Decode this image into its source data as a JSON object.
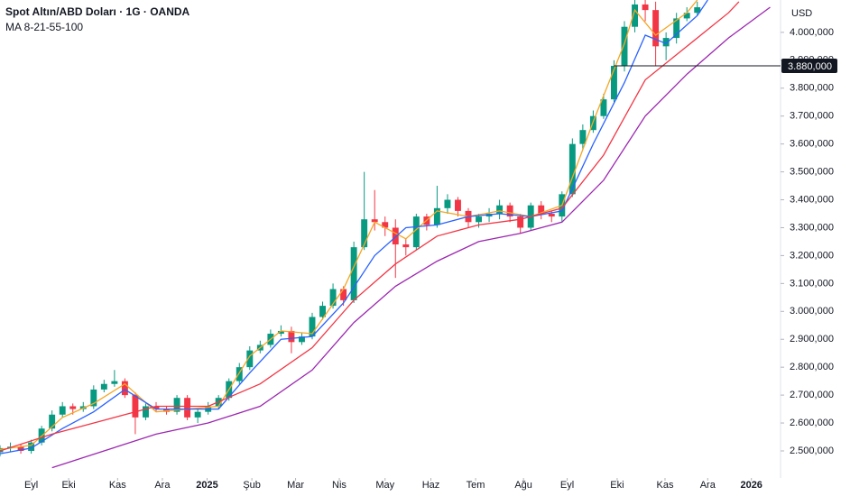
{
  "chart_data": {
    "type": "candlestick",
    "title": "Spot Altın/ABD Doları · 1G · OANDA",
    "indicator_label": "MA 8-21-55-100",
    "currency": "USD",
    "up_color": "#089981",
    "down_color": "#f23645",
    "x": [
      0,
      1,
      2,
      3,
      4,
      5,
      6,
      7,
      8,
      9,
      10,
      11,
      12,
      13,
      14,
      15,
      16,
      17,
      18,
      19,
      20,
      21,
      22,
      23,
      24,
      25,
      26,
      27,
      28,
      29,
      30,
      31,
      32,
      33,
      34,
      35,
      36,
      37,
      38,
      39,
      40,
      41,
      42,
      43,
      44,
      45,
      46,
      47,
      48,
      49,
      50,
      51,
      52,
      53,
      54,
      55,
      56,
      57,
      58,
      59,
      60,
      61,
      62,
      63,
      64,
      65,
      66,
      67
    ],
    "open": [
      2495,
      2510,
      2515,
      2500,
      2530,
      2580,
      2630,
      2660,
      2650,
      2660,
      2720,
      2740,
      2750,
      2700,
      2620,
      2660,
      2650,
      2640,
      2690,
      2620,
      2640,
      2660,
      2690,
      2750,
      2800,
      2860,
      2880,
      2920,
      2930,
      2890,
      2910,
      2980,
      3020,
      3080,
      3040,
      3230,
      3330,
      3320,
      3300,
      3240,
      3230,
      3340,
      3310,
      3370,
      3400,
      3360,
      3320,
      3340,
      3350,
      3380,
      3340,
      3300,
      3380,
      3350,
      3340,
      3420,
      3600,
      3650,
      3700,
      3760,
      3880,
      4020,
      4100,
      4080,
      3950,
      3980,
      4050,
      4070
    ],
    "high": [
      2520,
      2530,
      2525,
      2540,
      2590,
      2645,
      2675,
      2670,
      2675,
      2735,
      2755,
      2790,
      2760,
      2710,
      2670,
      2675,
      2660,
      2700,
      2700,
      2655,
      2675,
      2700,
      2760,
      2815,
      2875,
      2895,
      2935,
      2950,
      2945,
      2925,
      2995,
      3035,
      3100,
      3090,
      3250,
      3500,
      3435,
      3340,
      3330,
      3260,
      3350,
      3350,
      3450,
      3420,
      3410,
      3370,
      3350,
      3370,
      3400,
      3390,
      3350,
      3390,
      3395,
      3360,
      3430,
      3620,
      3670,
      3720,
      3780,
      3900,
      4040,
      4120,
      4130,
      4110,
      4000,
      4070,
      4090,
      4110
    ],
    "low": [
      2480,
      2495,
      2490,
      2490,
      2520,
      2570,
      2620,
      2630,
      2640,
      2650,
      2710,
      2730,
      2690,
      2560,
      2610,
      2640,
      2630,
      2630,
      2610,
      2600,
      2630,
      2650,
      2680,
      2740,
      2790,
      2850,
      2870,
      2910,
      2850,
      2880,
      2900,
      2970,
      3010,
      3020,
      3030,
      3220,
      3290,
      3270,
      3120,
      3200,
      3220,
      3290,
      3300,
      3350,
      3340,
      3300,
      3300,
      3320,
      3330,
      3320,
      3280,
      3290,
      3330,
      3320,
      3320,
      3410,
      3580,
      3640,
      3690,
      3750,
      3860,
      4000,
      4040,
      3880,
      3900,
      3960,
      4040,
      4060
    ],
    "close": [
      2510,
      2515,
      2500,
      2530,
      2580,
      2630,
      2660,
      2650,
      2660,
      2720,
      2740,
      2750,
      2700,
      2620,
      2660,
      2650,
      2640,
      2690,
      2620,
      2640,
      2660,
      2690,
      2750,
      2800,
      2860,
      2880,
      2920,
      2930,
      2890,
      2910,
      2980,
      3020,
      3080,
      3040,
      3230,
      3330,
      3320,
      3300,
      3240,
      3230,
      3340,
      3310,
      3370,
      3400,
      3360,
      3320,
      3340,
      3350,
      3380,
      3340,
      3300,
      3380,
      3350,
      3340,
      3420,
      3600,
      3650,
      3700,
      3760,
      3880,
      4020,
      4100,
      4080,
      3950,
      3980,
      4050,
      4070,
      4090
    ],
    "moving_averages": [
      {
        "color": "#f5a623",
        "x": [
          0,
          3,
          6,
          9,
          12,
          15,
          18,
          21,
          24,
          27,
          30,
          33,
          36,
          39,
          42,
          45,
          48,
          51,
          54,
          57,
          60,
          61,
          63,
          66,
          67
        ],
        "values": [
          2505,
          2520,
          2620,
          2670,
          2740,
          2640,
          2650,
          2660,
          2840,
          2930,
          2920,
          3080,
          3320,
          3260,
          3360,
          3340,
          3360,
          3340,
          3380,
          3680,
          3960,
          4080,
          3990,
          4070,
          4116
        ]
      },
      {
        "color": "#2962ff",
        "x": [
          0,
          3,
          6,
          9,
          12,
          15,
          18,
          21,
          24,
          27,
          30,
          33,
          36,
          39,
          42,
          45,
          48,
          51,
          54,
          57,
          60,
          62,
          64,
          67,
          68
        ],
        "values": [
          2490,
          2510,
          2580,
          2640,
          2720,
          2650,
          2650,
          2650,
          2780,
          2900,
          2910,
          3030,
          3200,
          3300,
          3310,
          3340,
          3350,
          3340,
          3360,
          3600,
          3820,
          3990,
          3960,
          4060,
          4116
        ]
      },
      {
        "color": "#f23645",
        "x": [
          0,
          5,
          10,
          15,
          20,
          25,
          30,
          34,
          38,
          42,
          46,
          50,
          54,
          58,
          62,
          66,
          70,
          71
        ],
        "values": [
          2500,
          2560,
          2610,
          2660,
          2660,
          2740,
          2870,
          3040,
          3170,
          3270,
          3310,
          3330,
          3370,
          3560,
          3830,
          3950,
          4070,
          4110
        ]
      },
      {
        "color": "#9c27b0",
        "x": [
          5,
          10,
          15,
          20,
          25,
          30,
          34,
          38,
          42,
          46,
          50,
          54,
          58,
          62,
          66,
          70,
          74
        ],
        "values": [
          2440,
          2500,
          2560,
          2600,
          2660,
          2790,
          2960,
          3090,
          3180,
          3250,
          3280,
          3320,
          3470,
          3700,
          3850,
          3980,
          4090
        ]
      }
    ],
    "price_line": {
      "value": 3880,
      "label": "3.880,000"
    },
    "xlim": [
      0,
      75
    ],
    "xticks": [
      {
        "value": 3.0,
        "label": "Eyl"
      },
      {
        "value": 6.6,
        "label": "Eki"
      },
      {
        "value": 11.3,
        "label": "Kas"
      },
      {
        "value": 15.6,
        "label": "Ara"
      },
      {
        "value": 19.9,
        "label": "2025"
      },
      {
        "value": 24.2,
        "label": "Şub"
      },
      {
        "value": 28.4,
        "label": "Mar"
      },
      {
        "value": 32.6,
        "label": "Nis"
      },
      {
        "value": 37.0,
        "label": "May"
      },
      {
        "value": 41.4,
        "label": "Haz"
      },
      {
        "value": 45.7,
        "label": "Tem"
      },
      {
        "value": 50.3,
        "label": "Ağu"
      },
      {
        "value": 54.5,
        "label": "Eyl"
      },
      {
        "value": 59.3,
        "label": "Eki"
      },
      {
        "value": 63.9,
        "label": "Kas"
      },
      {
        "value": 68.0,
        "label": "Ara"
      },
      {
        "value": 72.2,
        "label": "2026"
      }
    ],
    "ylim": [
      2403,
      4116
    ],
    "yticks": [
      {
        "value": 2500,
        "label": "2.500,000"
      },
      {
        "value": 2600,
        "label": "2.600,000"
      },
      {
        "value": 2700,
        "label": "2.700,000"
      },
      {
        "value": 2800,
        "label": "2.800,000"
      },
      {
        "value": 2900,
        "label": "2.900,000"
      },
      {
        "value": 3000,
        "label": "3.000,000"
      },
      {
        "value": 3100,
        "label": "3.100,000"
      },
      {
        "value": 3200,
        "label": "3.200,000"
      },
      {
        "value": 3300,
        "label": "3.300,000"
      },
      {
        "value": 3400,
        "label": "3.400,000"
      },
      {
        "value": 3500,
        "label": "3.500,000"
      },
      {
        "value": 3600,
        "label": "3.600,000"
      },
      {
        "value": 3700,
        "label": "3.700,000"
      },
      {
        "value": 3800,
        "label": "3.800,000"
      },
      {
        "value": 3900,
        "label": "3.900,000"
      },
      {
        "value": 4000,
        "label": "4.000,000"
      }
    ],
    "grid": false
  }
}
